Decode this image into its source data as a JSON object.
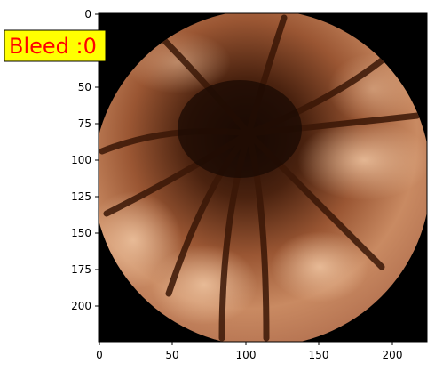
{
  "figure": {
    "image_size": [
      224,
      224
    ],
    "x_ticks": [
      "0",
      "50",
      "100",
      "150",
      "200"
    ],
    "y_ticks": [
      "0",
      "25",
      "50",
      "75",
      "100",
      "125",
      "150",
      "175",
      "200"
    ]
  },
  "badge": {
    "text": "Bleed :0",
    "background": "#ffff00",
    "text_color": "#ff0000"
  },
  "colors": {
    "frame": "#000000",
    "tissue_dark": "#2a1206",
    "tissue_mid": "#8a4a2a",
    "tissue_light": "#d8a07a"
  }
}
